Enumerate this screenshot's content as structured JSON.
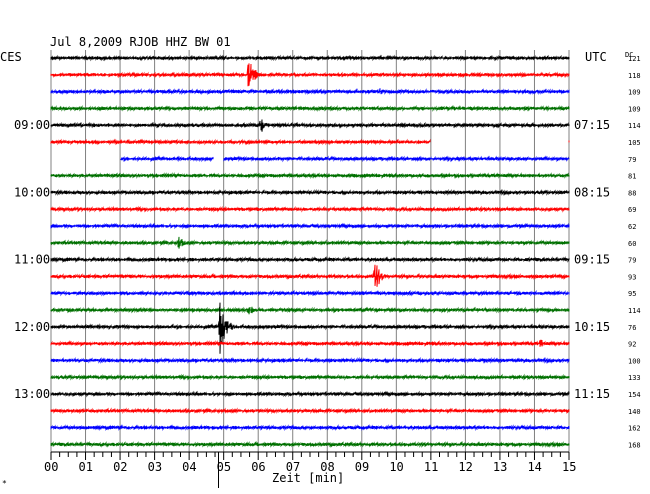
{
  "header": {
    "title": "Jul 8,2009   RJOB HHZ BW 01",
    "left_zone": "CES",
    "right_zone": "UTC",
    "right_corner": "DC",
    "corner_mark": "*"
  },
  "colors": {
    "trace_cycle": [
      "#000000",
      "#ff0000",
      "#0000ff",
      "#007000"
    ],
    "grid": "#808080",
    "background": "#ffffff"
  },
  "chart_data": {
    "type": "line",
    "title": "Jul 8,2009   RJOB HHZ BW 01",
    "xlabel": "Zeit [min]",
    "x_ticks": [
      "00",
      "01",
      "02",
      "03",
      "04",
      "05",
      "06",
      "07",
      "08",
      "09",
      "10",
      "11",
      "12",
      "13",
      "14",
      "15"
    ],
    "xlim": [
      0,
      15
    ],
    "minor_ticks_per_minute": 4,
    "grid": true,
    "rows_per_hour": 4,
    "left_time_labels": [
      {
        "row": 4,
        "text": "09:00"
      },
      {
        "row": 8,
        "text": "10:00"
      },
      {
        "row": 12,
        "text": "11:00"
      },
      {
        "row": 16,
        "text": "12:00"
      },
      {
        "row": 20,
        "text": "13:00"
      }
    ],
    "right_time_labels": [
      {
        "row": 0,
        "text": "UTC"
      },
      {
        "row": 4,
        "text": "07:15"
      },
      {
        "row": 8,
        "text": "08:15"
      },
      {
        "row": 12,
        "text": "09:15"
      },
      {
        "row": 16,
        "text": "10:15"
      },
      {
        "row": 20,
        "text": "11:15"
      }
    ],
    "dc_offsets": [
      121,
      118,
      109,
      109,
      114,
      105,
      79,
      81,
      88,
      69,
      62,
      60,
      79,
      93,
      95,
      114,
      76,
      92,
      100,
      133,
      154,
      140,
      162,
      168
    ],
    "trace_colors": [
      "black",
      "red",
      "blue",
      "green",
      "black",
      "red",
      "blue",
      "green",
      "black",
      "red",
      "blue",
      "green",
      "black",
      "red",
      "blue",
      "green",
      "black",
      "red",
      "blue",
      "green",
      "black",
      "red",
      "blue",
      "green"
    ],
    "gaps": [
      {
        "row": 5,
        "from_min": 11.0,
        "to_min": 15.0
      },
      {
        "row": 6,
        "from_min": 0.0,
        "to_min": 2.0
      },
      {
        "row": 6,
        "from_min": 4.7,
        "to_min": 5.0
      }
    ],
    "events": [
      {
        "row": 1,
        "minute": 5.75,
        "amplitude": "large"
      },
      {
        "row": 2,
        "minute": 9.5,
        "amplitude": "small"
      },
      {
        "row": 4,
        "minute": 6.1,
        "amplitude": "medium"
      },
      {
        "row": 11,
        "minute": 3.7,
        "amplitude": "medium"
      },
      {
        "row": 13,
        "minute": 9.4,
        "amplitude": "large"
      },
      {
        "row": 15,
        "minute": 5.7,
        "amplitude": "medium"
      },
      {
        "row": 16,
        "minute": 4.9,
        "amplitude": "very large"
      },
      {
        "row": 17,
        "minute": 14.2,
        "amplitude": "small"
      },
      {
        "row": 18,
        "minute": 12.5,
        "amplitude": "small"
      }
    ]
  }
}
